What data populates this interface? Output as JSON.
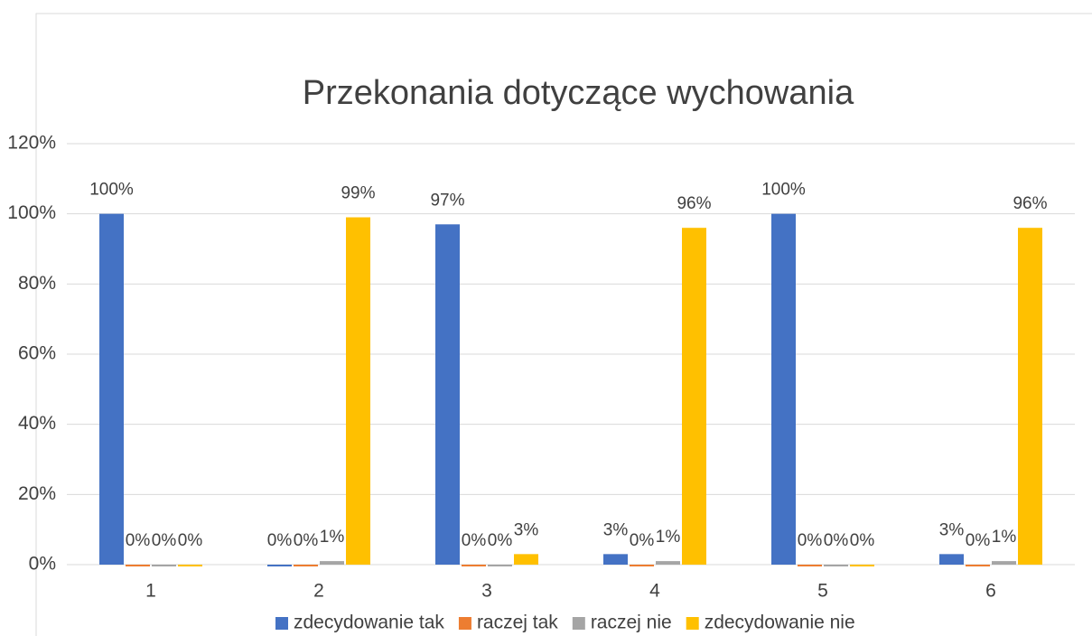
{
  "chart_data": {
    "type": "bar",
    "title": "Przekonania dotyczące wychowania",
    "categories": [
      "1",
      "2",
      "3",
      "4",
      "5",
      "6"
    ],
    "series": [
      {
        "name": "zdecydowanie tak",
        "color": "#4472c4",
        "values": [
          100,
          0,
          97,
          3,
          100,
          3
        ],
        "value_labels": [
          "100%",
          "0%",
          "97%",
          "3%",
          "100%",
          "3%"
        ]
      },
      {
        "name": "raczej tak",
        "color": "#ed7d31",
        "values": [
          0,
          0,
          0,
          0,
          0,
          0
        ],
        "value_labels": [
          "0%",
          "0%",
          "0%",
          "0%",
          "0%",
          "0%"
        ]
      },
      {
        "name": "raczej nie",
        "color": "#a5a5a5",
        "values": [
          0,
          1,
          0,
          1,
          0,
          1
        ],
        "value_labels": [
          "0%",
          "1%",
          "0%",
          "1%",
          "0%",
          "1%"
        ]
      },
      {
        "name": "zdecydowanie nie",
        "color": "#ffc000",
        "values": [
          0,
          99,
          3,
          96,
          0,
          96
        ],
        "value_labels": [
          "0%",
          "99%",
          "3%",
          "96%",
          "0%",
          "96%"
        ]
      }
    ],
    "ylim": [
      0,
      120
    ],
    "yticks": [
      {
        "value": 0,
        "label": "0%"
      },
      {
        "value": 20,
        "label": "20%"
      },
      {
        "value": 40,
        "label": "40%"
      },
      {
        "value": 60,
        "label": "60%"
      },
      {
        "value": 80,
        "label": "80%"
      },
      {
        "value": 100,
        "label": "100%"
      },
      {
        "value": 120,
        "label": "120%"
      }
    ],
    "grid": true,
    "legend": "bottom"
  }
}
